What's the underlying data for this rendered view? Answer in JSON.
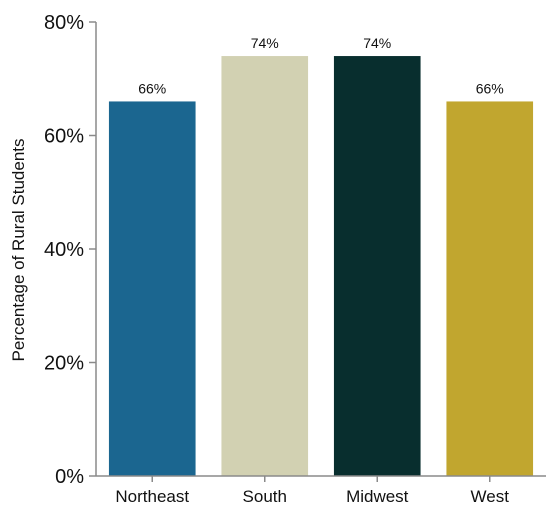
{
  "chart_data": {
    "type": "bar",
    "categories": [
      "Northeast",
      "South",
      "Midwest",
      "West"
    ],
    "values": [
      66,
      74,
      74,
      66
    ],
    "data_labels": [
      "66%",
      "74%",
      "74%",
      "66%"
    ],
    "colors": [
      "#1b6690",
      "#d2d1b2",
      "#082e2e",
      "#c1a62f"
    ],
    "title": "",
    "xlabel": "",
    "ylabel": "Percentage of Rural Students",
    "ylim": [
      0,
      80
    ],
    "yticks": [
      0,
      20,
      40,
      60,
      80
    ],
    "ytick_labels": [
      "0%",
      "20%",
      "40%",
      "60%",
      "80%"
    ],
    "grid": false,
    "legend": "none"
  }
}
